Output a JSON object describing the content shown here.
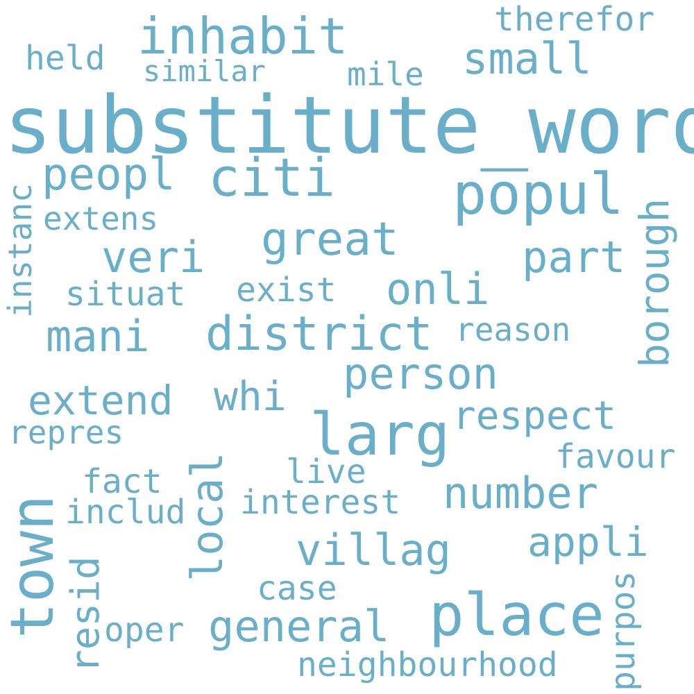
{
  "color": "#6aafc9",
  "words": [
    "substitute_word",
    "town",
    "popul",
    "larg",
    "place",
    "citi",
    "inhabit",
    "district",
    "great",
    "peopl",
    "person",
    "general",
    "respect",
    "number",
    "villag",
    "onli",
    "extend",
    "veri",
    "mani",
    "small",
    "part",
    "local",
    "borough",
    "whi",
    "appli",
    "resid",
    "interest",
    "reason",
    "neighbourhood",
    "therefor",
    "purpos",
    "favour",
    "fact",
    "case",
    "includ",
    "live",
    "exist",
    "situat",
    "oper",
    "repres",
    "similar",
    "mile",
    "held",
    "extens",
    "instanc"
  ]
}
